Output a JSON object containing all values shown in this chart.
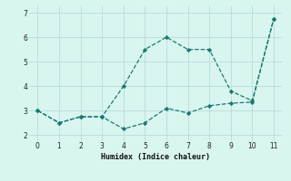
{
  "xlabel": "Humidex (Indice chaleur)",
  "x": [
    0,
    1,
    2,
    3,
    4,
    5,
    6,
    7,
    8,
    9,
    10,
    11
  ],
  "line1_y": [
    3.0,
    2.5,
    2.75,
    2.75,
    4.0,
    5.5,
    6.0,
    5.5,
    5.5,
    3.8,
    3.4,
    6.75
  ],
  "line2_y": [
    3.0,
    2.5,
    2.75,
    2.75,
    2.25,
    2.5,
    3.1,
    2.9,
    3.2,
    3.3,
    3.35,
    6.75
  ],
  "line_color": "#1a7a6e",
  "bg_color": "#d9f5f0",
  "grid_color": "#b8ddd8",
  "xlim": [
    -0.4,
    11.4
  ],
  "ylim": [
    1.75,
    7.3
  ],
  "yticks": [
    2,
    3,
    4,
    5,
    6,
    7
  ],
  "xticks": [
    0,
    1,
    2,
    3,
    4,
    5,
    6,
    7,
    8,
    9,
    10,
    11
  ]
}
